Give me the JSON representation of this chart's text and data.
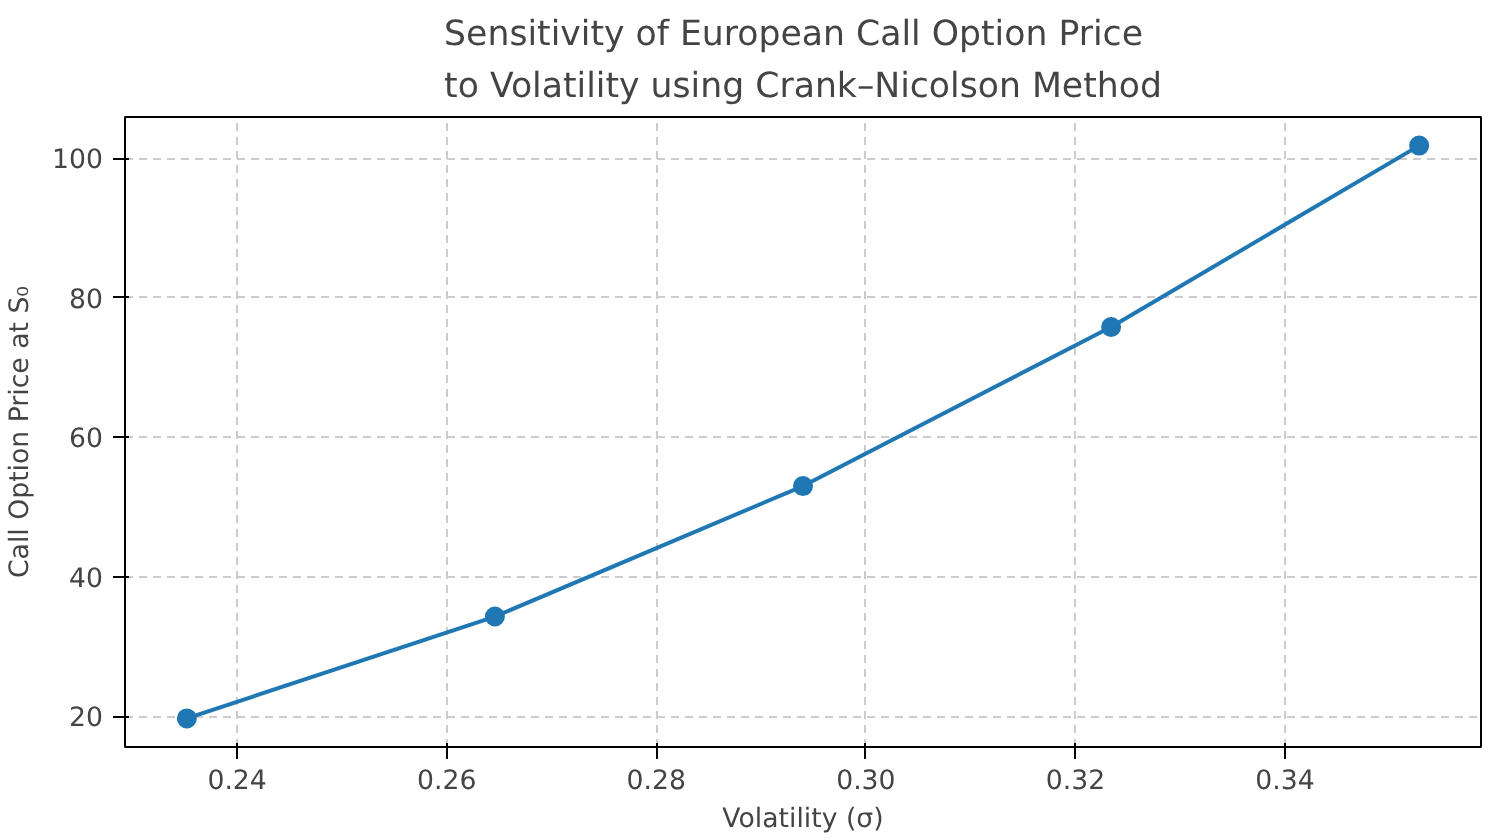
{
  "chart_data": {
    "type": "line",
    "title": "Sensitivity of European Call Option Price\nto Volatility using Crank–Nicolson Method",
    "xlabel": "Volatility (σ)",
    "ylabel": "Call Option Price at S₀",
    "x": [
      0.2352,
      0.2646,
      0.294,
      0.3234,
      0.3528
    ],
    "series": [
      {
        "color": "#1f77b4",
        "values": [
          19.7,
          34.3,
          53.0,
          75.8,
          101.8
        ]
      }
    ],
    "xlim": [
      0.2293,
      0.3587
    ],
    "ylim": [
      15.6,
      105.9
    ],
    "xticks": [
      {
        "value": 0.24,
        "label": "0.24"
      },
      {
        "value": 0.26,
        "label": "0.26"
      },
      {
        "value": 0.28,
        "label": "0.28"
      },
      {
        "value": 0.3,
        "label": "0.30"
      },
      {
        "value": 0.32,
        "label": "0.32"
      },
      {
        "value": 0.34,
        "label": "0.34"
      }
    ],
    "yticks": [
      20,
      40,
      60,
      80,
      100
    ],
    "grid": true,
    "marker": "circle",
    "line_style": "solid"
  }
}
